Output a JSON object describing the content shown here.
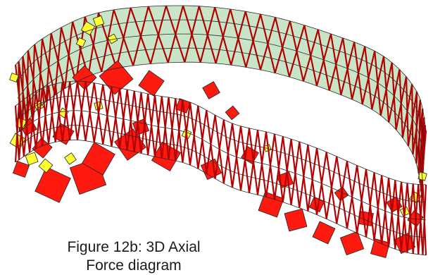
{
  "caption": {
    "line1": "Figure 12b:  3D Axial",
    "line2": "Force diagram"
  },
  "colors": {
    "tension_member": "#b30000",
    "compression_force": "#ff1a10",
    "tension_force": "#ffff33",
    "shell_glazing": "#bfe0bd",
    "grid_line": "#2a2a2a",
    "force_outline": "#222222"
  }
}
